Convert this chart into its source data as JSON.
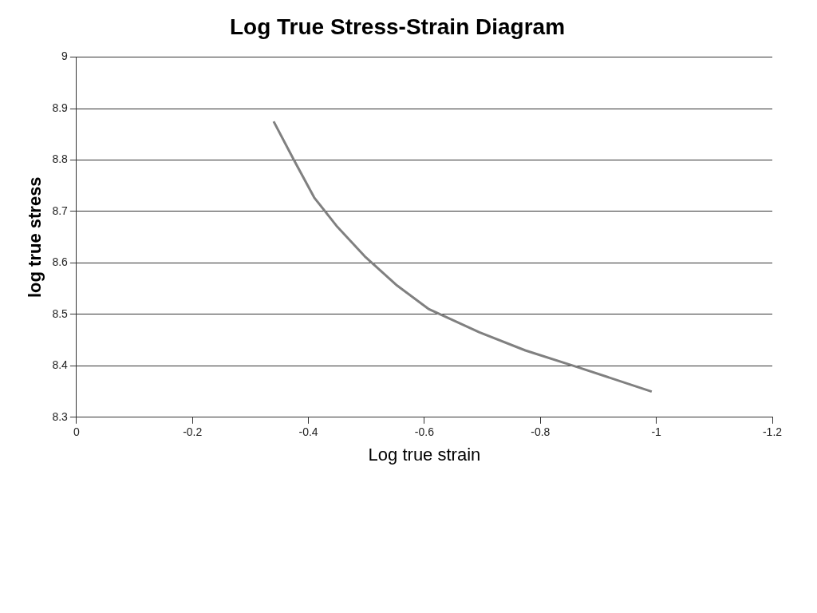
{
  "chart_data": {
    "type": "line",
    "title": "Log True Stress-Strain Diagram",
    "xlabel": "Log true strain",
    "ylabel": "log true stress",
    "series": [
      {
        "color": "#808080",
        "x": [
          -0.34,
          -0.375,
          -0.41,
          -0.45,
          -0.497,
          -0.553,
          -0.608,
          -0.695,
          -0.774,
          -0.868,
          -0.992
        ],
        "values": [
          8.875,
          8.8,
          8.727,
          8.67,
          8.613,
          8.556,
          8.51,
          8.465,
          8.43,
          8.396,
          8.35
        ]
      }
    ],
    "xlim": [
      0,
      -1.2
    ],
    "xticks": [
      0,
      -0.2,
      -0.4,
      -0.6,
      -0.8,
      -1,
      -1.2
    ],
    "ylim": [
      8.3,
      9
    ],
    "yticks": [
      8.3,
      8.4,
      8.5,
      8.6,
      8.7,
      8.8,
      8.9,
      9
    ],
    "grid": "y",
    "legend": false,
    "marker": "none",
    "line_style": "solid"
  }
}
